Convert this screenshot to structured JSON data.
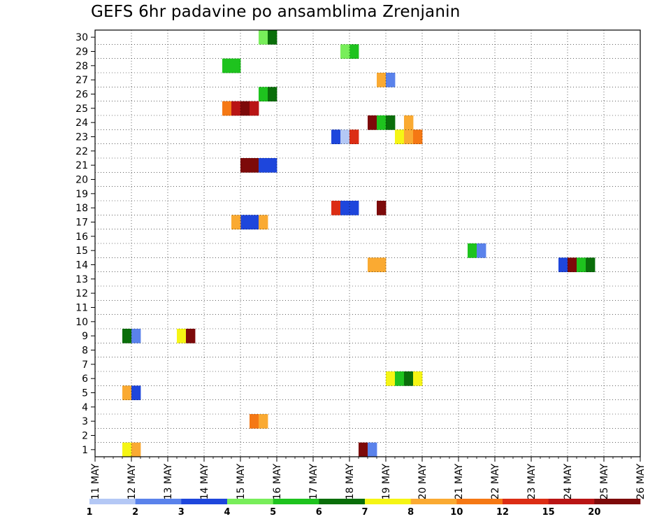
{
  "chart_data": {
    "type": "heatmap",
    "title": "GEFS 6hr padavine po ansamblima Zrenjanin",
    "y_categories": [
      "1",
      "2",
      "3",
      "4",
      "5",
      "6",
      "7",
      "8",
      "9",
      "10",
      "11",
      "12",
      "13",
      "14",
      "15",
      "16",
      "17",
      "18",
      "19",
      "20",
      "21",
      "22",
      "23",
      "24",
      "25",
      "26",
      "27",
      "28",
      "29",
      "30"
    ],
    "x_tick_labels": [
      "11 MAY",
      "12 MAY",
      "13 MAY",
      "14 MAY",
      "15 MAY",
      "16 MAY",
      "17 MAY",
      "18 MAY",
      "19 MAY",
      "20 MAY",
      "21 MAY",
      "22 MAY",
      "23 MAY",
      "24 MAY",
      "25 MAY",
      "26 MAY"
    ],
    "x_range": [
      "11 MAY 00h",
      "26 MAY 00h"
    ],
    "time_step_hours": 6,
    "columns": 60,
    "grid": true,
    "colorbar": {
      "labels": [
        "1",
        "2",
        "3",
        "4",
        "5",
        "6",
        "7",
        "8",
        "10",
        "12",
        "15",
        "20"
      ],
      "colors": [
        "#b4c8f5",
        "#5a82eb",
        "#1e46dc",
        "#78ee5a",
        "#1ec31e",
        "#0a6e0a",
        "#f5f514",
        "#faaa32",
        "#f57814",
        "#dc2d14",
        "#b91414",
        "#7d0a0a"
      ]
    },
    "cells": [
      {
        "member": 30,
        "step": 18,
        "level": 4
      },
      {
        "member": 30,
        "step": 19,
        "level": 6
      },
      {
        "member": 29,
        "step": 28,
        "level": 5
      },
      {
        "member": 29,
        "step": 27,
        "level": 4
      },
      {
        "member": 28,
        "step": 14,
        "level": 5
      },
      {
        "member": 28,
        "step": 15,
        "level": 5
      },
      {
        "member": 27,
        "step": 31,
        "level": 8
      },
      {
        "member": 27,
        "step": 32,
        "level": 2
      },
      {
        "member": 26,
        "step": 18,
        "level": 5
      },
      {
        "member": 26,
        "step": 19,
        "level": 6
      },
      {
        "member": 25,
        "step": 14,
        "level": 9
      },
      {
        "member": 25,
        "step": 15,
        "level": 11
      },
      {
        "member": 25,
        "step": 16,
        "level": 12
      },
      {
        "member": 25,
        "step": 17,
        "level": 11
      },
      {
        "member": 24,
        "step": 30,
        "level": 12
      },
      {
        "member": 24,
        "step": 31,
        "level": 5
      },
      {
        "member": 24,
        "step": 32,
        "level": 6
      },
      {
        "member": 24,
        "step": 34,
        "level": 8
      },
      {
        "member": 23,
        "step": 26,
        "level": 3
      },
      {
        "member": 23,
        "step": 27,
        "level": 1
      },
      {
        "member": 23,
        "step": 28,
        "level": 10
      },
      {
        "member": 23,
        "step": 33,
        "level": 7
      },
      {
        "member": 23,
        "step": 34,
        "level": 8
      },
      {
        "member": 23,
        "step": 35,
        "level": 9
      },
      {
        "member": 21,
        "step": 16,
        "level": 12
      },
      {
        "member": 21,
        "step": 17,
        "level": 12
      },
      {
        "member": 21,
        "step": 18,
        "level": 3
      },
      {
        "member": 21,
        "step": 19,
        "level": 3
      },
      {
        "member": 18,
        "step": 26,
        "level": 10
      },
      {
        "member": 18,
        "step": 27,
        "level": 3
      },
      {
        "member": 18,
        "step": 28,
        "level": 3
      },
      {
        "member": 18,
        "step": 31,
        "level": 12
      },
      {
        "member": 17,
        "step": 16,
        "level": 3
      },
      {
        "member": 17,
        "step": 17,
        "level": 3
      },
      {
        "member": 17,
        "step": 18,
        "level": 8
      },
      {
        "member": 17,
        "step": 15,
        "level": 8
      },
      {
        "member": 15,
        "step": 41,
        "level": 5
      },
      {
        "member": 15,
        "step": 42,
        "level": 2
      },
      {
        "member": 14,
        "step": 31,
        "level": 8
      },
      {
        "member": 14,
        "step": 30,
        "level": 8
      },
      {
        "member": 14,
        "step": 51,
        "level": 3
      },
      {
        "member": 14,
        "step": 52,
        "level": 12
      },
      {
        "member": 14,
        "step": 53,
        "level": 5
      },
      {
        "member": 14,
        "step": 54,
        "level": 6
      },
      {
        "member": 9,
        "step": 9,
        "level": 7
      },
      {
        "member": 9,
        "step": 10,
        "level": 12
      },
      {
        "member": 9,
        "step": 3,
        "level": 6
      },
      {
        "member": 9,
        "step": 4,
        "level": 2
      },
      {
        "member": 6,
        "step": 32,
        "level": 7
      },
      {
        "member": 6,
        "step": 33,
        "level": 5
      },
      {
        "member": 6,
        "step": 34,
        "level": 6
      },
      {
        "member": 6,
        "step": 35,
        "level": 7
      },
      {
        "member": 5,
        "step": 3,
        "level": 8
      },
      {
        "member": 5,
        "step": 4,
        "level": 3
      },
      {
        "member": 3,
        "step": 17,
        "level": 9
      },
      {
        "member": 3,
        "step": 18,
        "level": 8
      },
      {
        "member": 1,
        "step": 29,
        "level": 12
      },
      {
        "member": 1,
        "step": 30,
        "level": 2
      },
      {
        "member": 1,
        "step": 3,
        "level": 7
      },
      {
        "member": 1,
        "step": 4,
        "level": 8
      }
    ]
  }
}
